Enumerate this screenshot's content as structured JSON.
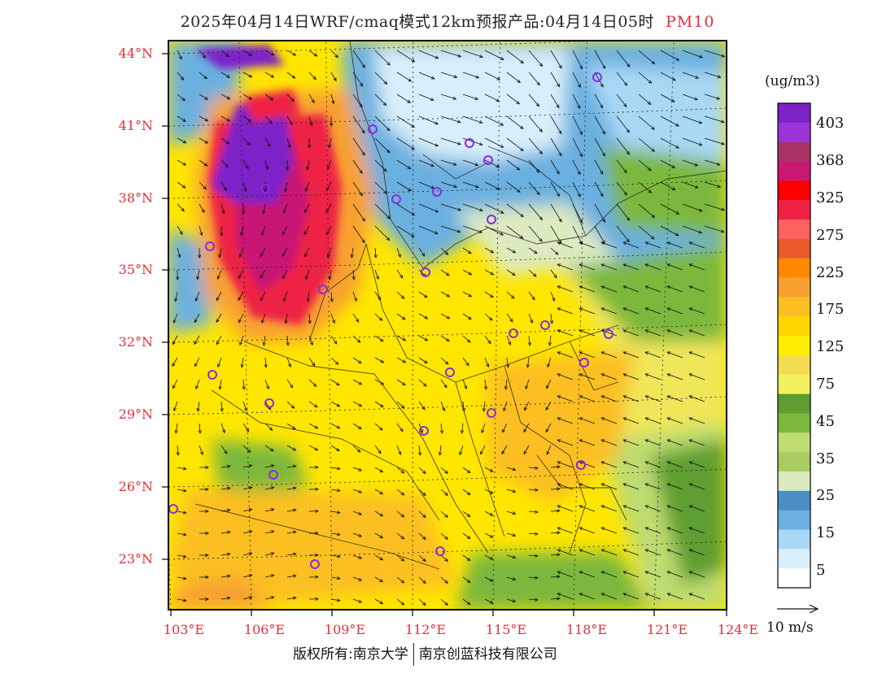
{
  "title": {
    "main": "2025年04月14日WRF/cmaq模式12km预报产品:04月14日05时",
    "pollutant": "PM10"
  },
  "axes": {
    "lat_labels": [
      "44°N",
      "41°N",
      "38°N",
      "35°N",
      "32°N",
      "29°N",
      "26°N",
      "23°N"
    ],
    "lon_labels": [
      "103°E",
      "106°E",
      "109°E",
      "112°E",
      "115°E",
      "118°E",
      "121°E",
      "124°E"
    ]
  },
  "colorbar": {
    "unit": "(ug/m3)",
    "labels": [
      "403",
      "368",
      "325",
      "275",
      "225",
      "175",
      "125",
      "75",
      "45",
      "35",
      "25",
      "15",
      "5"
    ],
    "colors": [
      "#7b22c8",
      "#9b34d8",
      "#aa3366",
      "#c81874",
      "#ff0000",
      "#ee2244",
      "#ff6060",
      "#e85a2a",
      "#ff8800",
      "#f8a030",
      "#fbbf22",
      "#ffd600",
      "#ffee00",
      "#f2dc50",
      "#f2f260",
      "#5e9e30",
      "#7cb83c",
      "#bedc70",
      "#a8cc60",
      "#dceac0",
      "#4a8ec6",
      "#6ab0e0",
      "#a8d8f4",
      "#d8eefa",
      "#ffffff"
    ]
  },
  "wind_scale": {
    "label": "10 m/s"
  },
  "footer": {
    "left": "版权所有:南京大学",
    "right": "南京创蓝科技有限公司"
  },
  "map_colors": {
    "low": "#cfe8f7",
    "clean": "#6ab0e0",
    "green": "#7cb83c",
    "yellow": "#ffe200",
    "orange": "#f8a030",
    "red": "#ee2244",
    "purple": "#7b22c8"
  }
}
